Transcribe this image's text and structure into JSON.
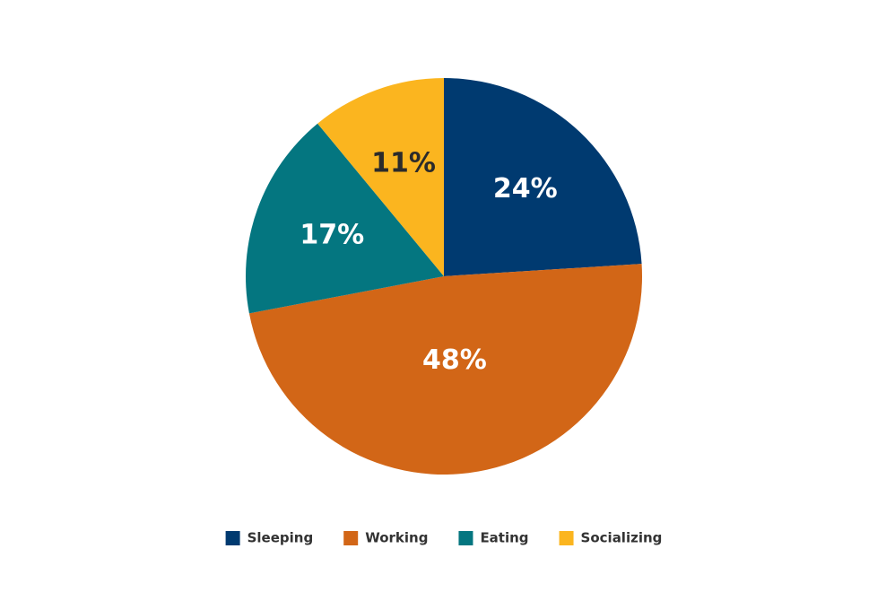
{
  "chart_data": {
    "type": "pie",
    "categories": [
      "Sleeping",
      "Working",
      "Eating",
      "Socializing"
    ],
    "values": [
      24,
      48,
      17,
      11
    ],
    "value_labels": [
      "24%",
      "48%",
      "17%",
      "11%"
    ],
    "colors": [
      "#003a70",
      "#d26617",
      "#047680",
      "#fbb51f"
    ],
    "legend": "bottom"
  }
}
